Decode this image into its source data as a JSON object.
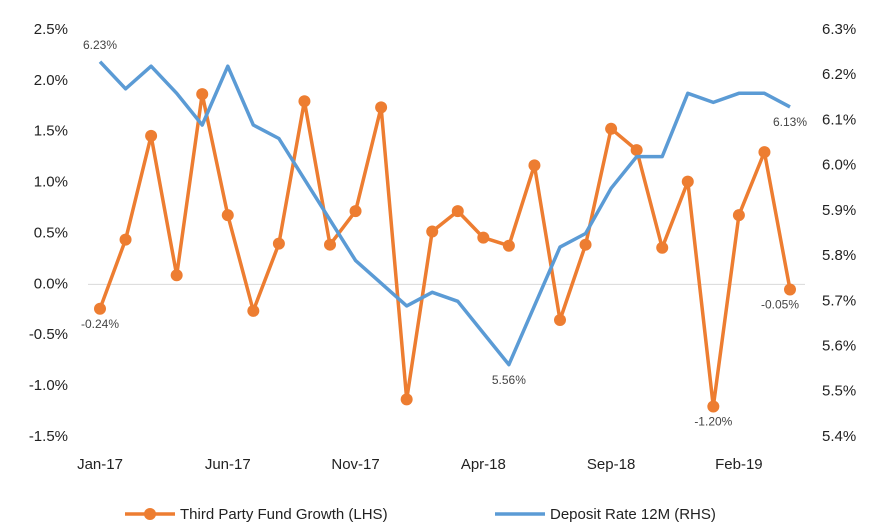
{
  "chart_data": {
    "type": "line",
    "categories": [
      "Jan-17",
      null,
      null,
      null,
      null,
      "Jun-17",
      null,
      null,
      null,
      null,
      "Nov-17",
      null,
      null,
      null,
      null,
      "Apr-18",
      null,
      null,
      null,
      null,
      "Sep-18",
      null,
      null,
      null,
      null,
      "Feb-19",
      null,
      null
    ],
    "series": [
      {
        "name": "Third Party Fund Growth (LHS)",
        "color": "#ed7d31",
        "axis": "y",
        "values": [
          -0.24,
          0.44,
          1.46,
          0.09,
          1.87,
          0.68,
          -0.26,
          0.4,
          1.8,
          0.39,
          0.72,
          1.74,
          -1.13,
          0.52,
          0.72,
          0.46,
          0.38,
          1.17,
          -0.35,
          0.39,
          1.53,
          1.32,
          0.36,
          1.01,
          -1.2,
          0.68,
          1.3,
          -0.05
        ],
        "value_labels": [
          "-0.24%",
          null,
          null,
          null,
          null,
          null,
          null,
          null,
          null,
          null,
          null,
          null,
          null,
          null,
          null,
          null,
          null,
          null,
          null,
          null,
          null,
          null,
          null,
          null,
          "-1.20%",
          null,
          null,
          "-0.05%"
        ]
      },
      {
        "name": "Deposit Rate 12M (RHS)",
        "color": "#5b9bd5",
        "axis": "y2",
        "values": [
          6.23,
          6.17,
          6.22,
          6.16,
          6.09,
          6.22,
          6.09,
          6.06,
          5.97,
          5.88,
          5.79,
          5.74,
          5.69,
          5.72,
          5.7,
          5.63,
          5.56,
          5.69,
          5.82,
          5.85,
          5.95,
          6.02,
          6.02,
          6.16,
          6.14,
          6.16,
          6.16,
          6.13
        ],
        "value_labels": [
          "6.23%",
          null,
          null,
          null,
          null,
          null,
          null,
          null,
          null,
          null,
          null,
          null,
          null,
          null,
          null,
          null,
          "5.56%",
          null,
          null,
          null,
          null,
          null,
          null,
          null,
          null,
          null,
          null,
          "6.13%"
        ]
      }
    ],
    "ylim": [
      -1.5,
      2.5
    ],
    "yticks": [
      {
        "value": -1.5,
        "label": "-1.5%"
      },
      {
        "value": -1.0,
        "label": "-1.0%"
      },
      {
        "value": -0.5,
        "label": "-0.5%"
      },
      {
        "value": 0,
        "label": "0.0%"
      },
      {
        "value": 0.5,
        "label": "0.5%"
      },
      {
        "value": 1.0,
        "label": "1.0%"
      },
      {
        "value": 1.5,
        "label": "1.5%"
      },
      {
        "value": 2.0,
        "label": "2.0%"
      },
      {
        "value": 2.5,
        "label": "2.5%"
      }
    ],
    "y2lim": [
      5.4,
      6.3
    ],
    "y2ticks": [
      {
        "value": 5.4,
        "label": "5.4%"
      },
      {
        "value": 5.5,
        "label": "5.5%"
      },
      {
        "value": 5.6,
        "label": "5.6%"
      },
      {
        "value": 5.7,
        "label": "5.7%"
      },
      {
        "value": 5.8,
        "label": "5.8%"
      },
      {
        "value": 5.9,
        "label": "5.9%"
      },
      {
        "value": 6.0,
        "label": "6.0%"
      },
      {
        "value": 6.1,
        "label": "6.1%"
      },
      {
        "value": 6.2,
        "label": "6.2%"
      },
      {
        "value": 6.3,
        "label": "6.3%"
      }
    ],
    "legend": "bottom"
  }
}
